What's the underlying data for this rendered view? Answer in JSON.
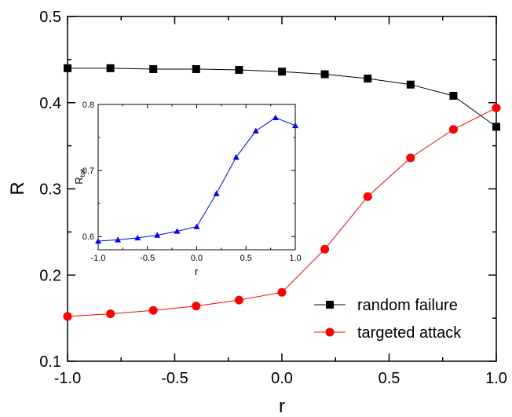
{
  "chart_data": [
    {
      "type": "line",
      "xlabel": "r",
      "ylabel": "R",
      "xlim": [
        -1.0,
        1.0
      ],
      "ylim": [
        0.1,
        0.5
      ],
      "xticks": [
        "-1.0",
        "-0.5",
        "0.0",
        "0.5",
        "1.0"
      ],
      "yticks": [
        "0.1",
        "0.2",
        "0.3",
        "0.4",
        "0.5"
      ],
      "legend_position": "bottom-right",
      "grid": false,
      "x": [
        -1.0,
        -0.8,
        -0.6,
        -0.4,
        -0.2,
        0.0,
        0.2,
        0.4,
        0.6,
        0.8,
        1.0
      ],
      "series": [
        {
          "name": "random failure",
          "color": "#000000",
          "marker": "square",
          "values": [
            0.44,
            0.44,
            0.439,
            0.439,
            0.438,
            0.436,
            0.433,
            0.428,
            0.421,
            0.408,
            0.372
          ]
        },
        {
          "name": "targeted attack",
          "color": "#ff0000",
          "marker": "circle",
          "values": [
            0.152,
            0.155,
            0.159,
            0.164,
            0.171,
            0.18,
            0.23,
            0.291,
            0.336,
            0.369,
            0.394
          ]
        }
      ]
    },
    {
      "type": "line",
      "xlabel": "r",
      "ylabel": "R",
      "ylabel_sub": "tot",
      "xlim": [
        -1.0,
        1.0
      ],
      "ylim": [
        0.58,
        0.8
      ],
      "xticks": [
        "-1.0",
        "-0.5",
        "0.0",
        "0.5",
        "1.0"
      ],
      "yticks": [
        "0.6",
        "0.7",
        "0.8"
      ],
      "grid": false,
      "x": [
        -1.0,
        -0.8,
        -0.6,
        -0.4,
        -0.2,
        0.0,
        0.2,
        0.4,
        0.6,
        0.8,
        1.0
      ],
      "series": [
        {
          "color": "#0000ff",
          "marker": "triangle",
          "values": [
            0.593,
            0.595,
            0.598,
            0.602,
            0.608,
            0.615,
            0.665,
            0.72,
            0.76,
            0.78,
            0.768
          ]
        }
      ]
    }
  ]
}
